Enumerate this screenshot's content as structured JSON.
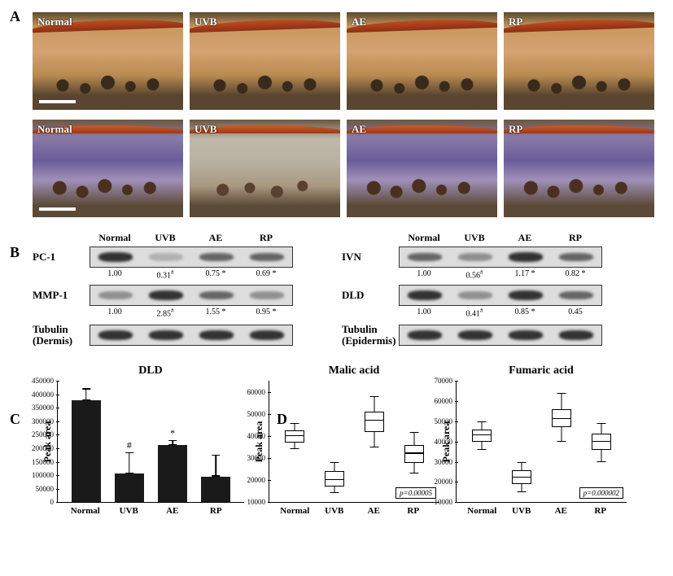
{
  "panelA": {
    "label": "A",
    "groups": [
      "Normal",
      "UVB",
      "AE",
      "RP"
    ]
  },
  "panelB": {
    "label": "B",
    "groups": [
      "Normal",
      "UVB",
      "AE",
      "RP"
    ],
    "left": {
      "rows": [
        {
          "name": "PC-1",
          "bands": [
            "strong",
            "faint",
            "med",
            "med"
          ],
          "vals": [
            "1.00",
            "0.31 #",
            "0.75 *",
            "0.69 *"
          ]
        },
        {
          "name": "MMP-1",
          "bands": [
            "weak",
            "strong",
            "med",
            "weak"
          ],
          "vals": [
            "1.00",
            "2.85 #",
            "1.55 *",
            "0.95 *"
          ]
        },
        {
          "name": "Tubulin\n(Dermis)",
          "bands": [
            "strong",
            "strong",
            "strong",
            "strong"
          ],
          "vals": null
        }
      ]
    },
    "right": {
      "rows": [
        {
          "name": "IVN",
          "bands": [
            "med",
            "weak",
            "strong",
            "med"
          ],
          "vals": [
            "1.00",
            "0.56 #",
            "1.17 *",
            "0.82 *"
          ]
        },
        {
          "name": "DLD",
          "bands": [
            "strong",
            "weak",
            "strong",
            "med"
          ],
          "vals": [
            "1.00",
            "0.41 #",
            "0.85 *",
            "0.45"
          ]
        },
        {
          "name": "Tubulin\n(Epidermis)",
          "bands": [
            "strong",
            "strong",
            "strong",
            "strong"
          ],
          "vals": null
        }
      ]
    }
  },
  "panelC": {
    "label": "C",
    "title": "DLD",
    "ylabel": "Peak area",
    "ymax": 450000,
    "yticks": [
      0,
      50000,
      100000,
      150000,
      200000,
      250000,
      300000,
      350000,
      400000,
      450000
    ],
    "groups": [
      "Normal",
      "UVB",
      "AE",
      "RP"
    ],
    "bars": [
      {
        "val": 375000,
        "err": 45000,
        "sig": ""
      },
      {
        "val": 105000,
        "err": 80000,
        "sig": "#"
      },
      {
        "val": 210000,
        "err": 20000,
        "sig": "*"
      },
      {
        "val": 95000,
        "err": 80000,
        "sig": ""
      }
    ]
  },
  "panelD": {
    "label": "D",
    "ylabel": "Peak area",
    "groups": [
      "Normal",
      "UVB",
      "AE",
      "RP"
    ],
    "charts": [
      {
        "title": "Malic acid",
        "ymax": 65000,
        "ymin": 10000,
        "yticks": [
          10000,
          20000,
          30000,
          40000,
          50000,
          60000
        ],
        "pval": "p=0.00005",
        "boxes": [
          {
            "min": 34000,
            "q1": 37000,
            "med": 40000,
            "q3": 42500,
            "max": 46000
          },
          {
            "min": 14000,
            "q1": 17000,
            "med": 20000,
            "q3": 24000,
            "max": 28000
          },
          {
            "min": 35000,
            "q1": 42000,
            "med": 47000,
            "q3": 51000,
            "max": 58000
          },
          {
            "min": 23000,
            "q1": 28000,
            "med": 32000,
            "q3": 36000,
            "max": 42000
          }
        ]
      },
      {
        "title": "Fumaric acid",
        "ymax": 70000,
        "ymin": 10000,
        "yticks": [
          10000,
          20000,
          30000,
          40000,
          50000,
          60000,
          70000
        ],
        "pval": "p=0.000002",
        "boxes": [
          {
            "min": 36000,
            "q1": 40000,
            "med": 43000,
            "q3": 46000,
            "max": 50000
          },
          {
            "min": 15000,
            "q1": 19000,
            "med": 22000,
            "q3": 26000,
            "max": 30000
          },
          {
            "min": 40000,
            "q1": 47000,
            "med": 51000,
            "q3": 56000,
            "max": 64000
          },
          {
            "min": 30000,
            "q1": 36000,
            "med": 40000,
            "q3": 44000,
            "max": 49000
          }
        ]
      }
    ]
  }
}
